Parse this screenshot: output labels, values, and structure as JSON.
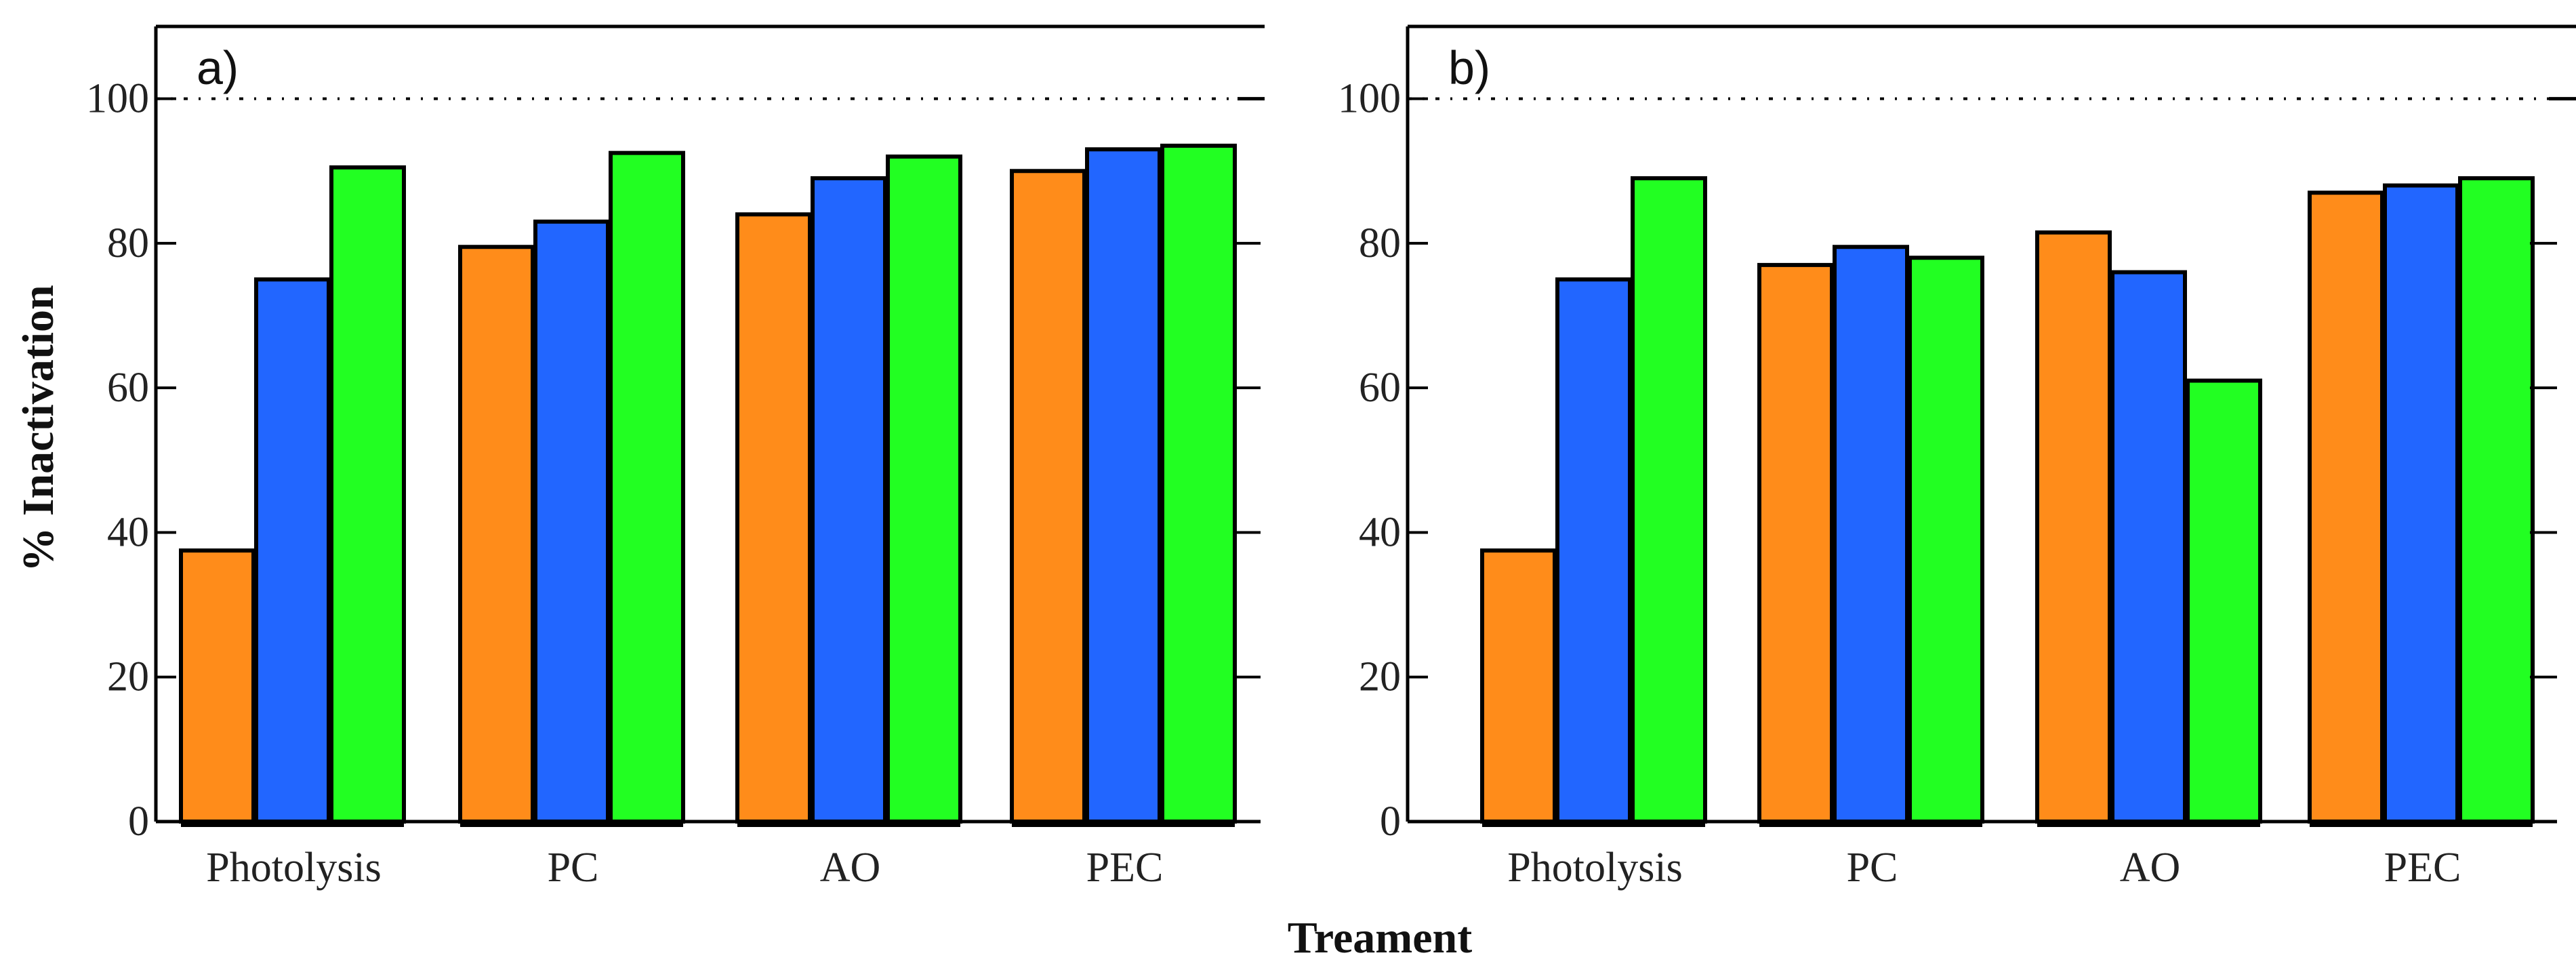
{
  "chart_data": [
    {
      "type": "bar",
      "panel_label": "a)",
      "categories": [
        "Photolysis",
        "PC",
        "AO",
        "PEC"
      ],
      "series": [
        {
          "name": "orange",
          "color": "#FF8C1A",
          "values": [
            37.5,
            79.5,
            84,
            90
          ]
        },
        {
          "name": "blue",
          "color": "#2266FF",
          "values": [
            75,
            83,
            89,
            93
          ]
        },
        {
          "name": "green",
          "color": "#22FF22",
          "values": [
            90.5,
            92.5,
            92,
            93.5
          ]
        }
      ],
      "ylabel": "% Inactivation",
      "ylim": [
        0,
        110
      ],
      "yticks": [
        0,
        20,
        40,
        60,
        80,
        100
      ],
      "reference_line": 100
    },
    {
      "type": "bar",
      "panel_label": "b)",
      "categories": [
        "Photolysis",
        "PC",
        "AO",
        "PEC"
      ],
      "series": [
        {
          "name": "orange",
          "color": "#FF8C1A",
          "values": [
            37.5,
            77,
            81.5,
            87
          ]
        },
        {
          "name": "blue",
          "color": "#2266FF",
          "values": [
            75,
            79.5,
            76,
            88
          ]
        },
        {
          "name": "green",
          "color": "#22FF22",
          "values": [
            89,
            78,
            61,
            89
          ]
        }
      ],
      "ylim": [
        0,
        110
      ],
      "yticks": [
        0,
        20,
        40,
        60,
        80,
        100
      ],
      "reference_line": 100
    }
  ],
  "xlabel": "Treament"
}
